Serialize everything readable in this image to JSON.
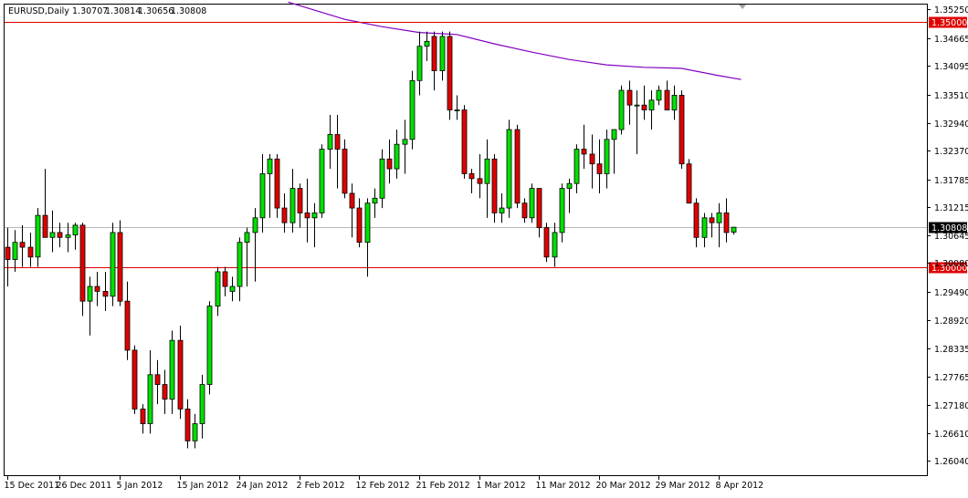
{
  "chart_data": {
    "type": "candlestick",
    "title": "EURUSD,Daily",
    "ohlc_header": [
      "1.30707",
      "1.30814",
      "1.30656",
      "1.30808"
    ],
    "ylim": [
      1.2575,
      1.3535
    ],
    "y_ticks": [
      "1.35250",
      "1.34665",
      "1.34095",
      "1.33510",
      "1.32940",
      "1.32370",
      "1.31785",
      "1.31215",
      "1.30645",
      "1.30080",
      "1.29490",
      "1.28920",
      "1.28335",
      "1.27765",
      "1.27180",
      "1.26610",
      "1.26040"
    ],
    "x_ticks": [
      {
        "index": 0,
        "label": "15 Dec 2011"
      },
      {
        "index": 7,
        "label": "26 Dec 2011"
      },
      {
        "index": 15,
        "label": "5 Jan 2012"
      },
      {
        "index": 23,
        "label": "15 Jan 2012"
      },
      {
        "index": 31,
        "label": "24 Jan 2012"
      },
      {
        "index": 39,
        "label": "2 Feb 2012"
      },
      {
        "index": 47,
        "label": "12 Feb 2012"
      },
      {
        "index": 55,
        "label": "21 Feb 2012"
      },
      {
        "index": 63,
        "label": "1 Mar 2012"
      },
      {
        "index": 71,
        "label": "11 Mar 2012"
      },
      {
        "index": 79,
        "label": "20 Mar 2012"
      },
      {
        "index": 87,
        "label": "29 Mar 2012"
      },
      {
        "index": 95,
        "label": "8 Apr 2012"
      }
    ],
    "horizontal_lines": [
      {
        "value": 1.35,
        "label": "1.35000",
        "color": "#e00000"
      },
      {
        "value": 1.3,
        "label": "1.30000",
        "color": "#e00000"
      }
    ],
    "current_price": {
      "value": 1.30808,
      "label": "1.30808",
      "color": "#000000"
    },
    "colors": {
      "bull": "#00e000",
      "bear": "#e00000",
      "wick": "#000000",
      "ma": "#8000c0",
      "grid": "#c0c0c0"
    },
    "candles": [
      [
        1.304,
        1.308,
        1.296,
        1.3015
      ],
      [
        1.3015,
        1.3075,
        1.299,
        1.305
      ],
      [
        1.305,
        1.3085,
        1.3,
        1.304
      ],
      [
        1.304,
        1.307,
        1.3,
        1.302
      ],
      [
        1.302,
        1.312,
        1.3,
        1.3105
      ],
      [
        1.3105,
        1.32,
        1.306,
        1.306
      ],
      [
        1.306,
        1.3115,
        1.303,
        1.307
      ],
      [
        1.307,
        1.309,
        1.304,
        1.306
      ],
      [
        1.306,
        1.309,
        1.303,
        1.3065
      ],
      [
        1.3065,
        1.309,
        1.3035,
        1.3085
      ],
      [
        1.3085,
        1.309,
        1.29,
        1.293
      ],
      [
        1.293,
        1.298,
        1.286,
        1.296
      ],
      [
        1.296,
        1.299,
        1.292,
        1.295
      ],
      [
        1.295,
        1.299,
        1.291,
        1.294
      ],
      [
        1.294,
        1.309,
        1.292,
        1.307
      ],
      [
        1.307,
        1.3095,
        1.292,
        1.293
      ],
      [
        1.293,
        1.297,
        1.281,
        1.283
      ],
      [
        1.283,
        1.284,
        1.27,
        1.271
      ],
      [
        1.271,
        1.272,
        1.266,
        1.268
      ],
      [
        1.268,
        1.283,
        1.266,
        1.278
      ],
      [
        1.278,
        1.281,
        1.272,
        1.276
      ],
      [
        1.276,
        1.279,
        1.27,
        1.273
      ],
      [
        1.273,
        1.287,
        1.27,
        1.285
      ],
      [
        1.285,
        1.288,
        1.269,
        1.271
      ],
      [
        1.271,
        1.273,
        1.263,
        1.2645
      ],
      [
        1.2645,
        1.27,
        1.263,
        1.268
      ],
      [
        1.268,
        1.278,
        1.265,
        1.276
      ],
      [
        1.276,
        1.293,
        1.274,
        1.292
      ],
      [
        1.292,
        1.3,
        1.29,
        1.299
      ],
      [
        1.299,
        1.3,
        1.294,
        1.296
      ],
      [
        1.295,
        1.298,
        1.293,
        1.296
      ],
      [
        1.296,
        1.306,
        1.293,
        1.305
      ],
      [
        1.305,
        1.308,
        1.296,
        1.307
      ],
      [
        1.307,
        1.312,
        1.297,
        1.31
      ],
      [
        1.31,
        1.323,
        1.307,
        1.319
      ],
      [
        1.319,
        1.323,
        1.31,
        1.322
      ],
      [
        1.322,
        1.323,
        1.31,
        1.312
      ],
      [
        1.312,
        1.315,
        1.307,
        1.309
      ],
      [
        1.309,
        1.32,
        1.307,
        1.316
      ],
      [
        1.316,
        1.317,
        1.308,
        1.311
      ],
      [
        1.311,
        1.318,
        1.305,
        1.31
      ],
      [
        1.31,
        1.313,
        1.304,
        1.311
      ],
      [
        1.311,
        1.325,
        1.31,
        1.324
      ],
      [
        1.324,
        1.331,
        1.32,
        1.327
      ],
      [
        1.327,
        1.331,
        1.316,
        1.324
      ],
      [
        1.324,
        1.326,
        1.314,
        1.315
      ],
      [
        1.315,
        1.317,
        1.306,
        1.312
      ],
      [
        1.312,
        1.314,
        1.304,
        1.305
      ],
      [
        1.305,
        1.314,
        1.298,
        1.313
      ],
      [
        1.313,
        1.316,
        1.31,
        1.314
      ],
      [
        1.314,
        1.324,
        1.312,
        1.322
      ],
      [
        1.322,
        1.326,
        1.317,
        1.32
      ],
      [
        1.32,
        1.328,
        1.318,
        1.325
      ],
      [
        1.325,
        1.33,
        1.319,
        1.326
      ],
      [
        1.326,
        1.34,
        1.324,
        1.338
      ],
      [
        1.338,
        1.348,
        1.335,
        1.345
      ],
      [
        1.345,
        1.348,
        1.342,
        1.346
      ],
      [
        1.347,
        1.348,
        1.336,
        1.34
      ],
      [
        1.34,
        1.348,
        1.338,
        1.347
      ],
      [
        1.347,
        1.348,
        1.33,
        1.332
      ],
      [
        1.332,
        1.335,
        1.33,
        1.332
      ],
      [
        1.332,
        1.333,
        1.318,
        1.319
      ],
      [
        1.319,
        1.32,
        1.315,
        1.318
      ],
      [
        1.318,
        1.323,
        1.314,
        1.317
      ],
      [
        1.317,
        1.326,
        1.31,
        1.322
      ],
      [
        1.322,
        1.323,
        1.309,
        1.311
      ],
      [
        1.311,
        1.315,
        1.309,
        1.312
      ],
      [
        1.312,
        1.33,
        1.31,
        1.328
      ],
      [
        1.328,
        1.329,
        1.312,
        1.313
      ],
      [
        1.313,
        1.314,
        1.309,
        1.31
      ],
      [
        1.31,
        1.317,
        1.309,
        1.316
      ],
      [
        1.316,
        1.316,
        1.306,
        1.308
      ],
      [
        1.308,
        1.309,
        1.301,
        1.302
      ],
      [
        1.302,
        1.309,
        1.3,
        1.307
      ],
      [
        1.307,
        1.317,
        1.305,
        1.316
      ],
      [
        1.316,
        1.318,
        1.311,
        1.317
      ],
      [
        1.317,
        1.325,
        1.315,
        1.324
      ],
      [
        1.324,
        1.329,
        1.32,
        1.323
      ],
      [
        1.323,
        1.327,
        1.316,
        1.321
      ],
      [
        1.321,
        1.326,
        1.315,
        1.319
      ],
      [
        1.319,
        1.328,
        1.316,
        1.326
      ],
      [
        1.326,
        1.328,
        1.319,
        1.328
      ],
      [
        1.328,
        1.337,
        1.327,
        1.336
      ],
      [
        1.336,
        1.338,
        1.329,
        1.333
      ],
      [
        1.333,
        1.336,
        1.323,
        1.333
      ],
      [
        1.333,
        1.337,
        1.33,
        1.332
      ],
      [
        1.332,
        1.336,
        1.328,
        1.334
      ],
      [
        1.334,
        1.337,
        1.333,
        1.336
      ],
      [
        1.336,
        1.338,
        1.332,
        1.332
      ],
      [
        1.332,
        1.337,
        1.33,
        1.335
      ],
      [
        1.335,
        1.336,
        1.32,
        1.321
      ],
      [
        1.321,
        1.322,
        1.313,
        1.313
      ],
      [
        1.313,
        1.314,
        1.304,
        1.306
      ],
      [
        1.306,
        1.311,
        1.304,
        1.31
      ],
      [
        1.31,
        1.311,
        1.306,
        1.309
      ],
      [
        1.309,
        1.313,
        1.304,
        1.311
      ],
      [
        1.311,
        1.314,
        1.305,
        1.307
      ],
      [
        1.30707,
        1.30814,
        1.30656,
        1.30808
      ]
    ],
    "moving_average": [
      {
        "index": 37.5,
        "value": 1.354
      },
      {
        "index": 45,
        "value": 1.3505
      },
      {
        "index": 50,
        "value": 1.349
      },
      {
        "index": 55,
        "value": 1.3478
      },
      {
        "index": 60,
        "value": 1.3474
      },
      {
        "index": 65,
        "value": 1.3455
      },
      {
        "index": 70,
        "value": 1.3438
      },
      {
        "index": 75,
        "value": 1.3423
      },
      {
        "index": 80,
        "value": 1.3412
      },
      {
        "index": 85,
        "value": 1.3407
      },
      {
        "index": 90,
        "value": 1.3405
      },
      {
        "index": 95,
        "value": 1.339
      },
      {
        "index": 98,
        "value": 1.3382
      }
    ]
  }
}
